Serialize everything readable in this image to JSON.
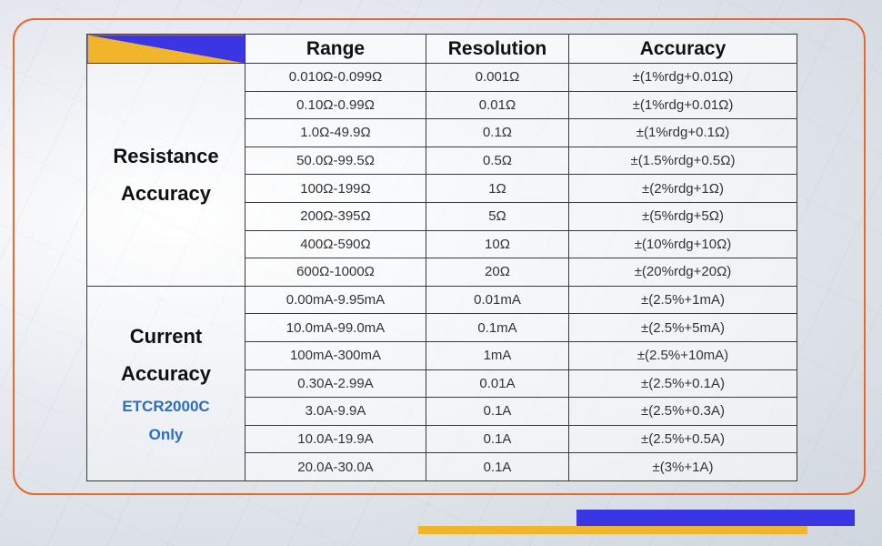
{
  "colors": {
    "frame_border": "#e8692a",
    "accent_blue": "#3a36e6",
    "accent_yellow": "#f1b52c",
    "note_blue": "#2c6fc0"
  },
  "table": {
    "headers": [
      "Range",
      "Resolution",
      "Accuracy"
    ],
    "resistance": {
      "title_line1": "Resistance",
      "title_line2": "Accuracy",
      "rows": [
        [
          "0.010Ω-0.099Ω",
          "0.001Ω",
          "±(1%rdg+0.01Ω)"
        ],
        [
          "0.10Ω-0.99Ω",
          "0.01Ω",
          "±(1%rdg+0.01Ω)"
        ],
        [
          "1.0Ω-49.9Ω",
          "0.1Ω",
          "±(1%rdg+0.1Ω)"
        ],
        [
          "50.0Ω-99.5Ω",
          "0.5Ω",
          "±(1.5%rdg+0.5Ω)"
        ],
        [
          "100Ω-199Ω",
          "1Ω",
          "±(2%rdg+1Ω)"
        ],
        [
          "200Ω-395Ω",
          "5Ω",
          "±(5%rdg+5Ω)"
        ],
        [
          "400Ω-590Ω",
          "10Ω",
          "±(10%rdg+10Ω)"
        ],
        [
          "600Ω-1000Ω",
          "20Ω",
          "±(20%rdg+20Ω)"
        ]
      ]
    },
    "current": {
      "title_line1": "Current",
      "title_line2": "Accuracy",
      "note_line1": "ETCR2000C",
      "note_line2": "Only",
      "rows": [
        [
          "0.00mA-9.95mA",
          "0.01mA",
          "±(2.5%+1mA)"
        ],
        [
          "10.0mA-99.0mA",
          "0.1mA",
          "±(2.5%+5mA)"
        ],
        [
          "100mA-300mA",
          "1mA",
          "±(2.5%+10mA)"
        ],
        [
          "0.30A-2.99A",
          "0.01A",
          "±(2.5%+0.1A)"
        ],
        [
          "3.0A-9.9A",
          "0.1A",
          "±(2.5%+0.3A)"
        ],
        [
          "10.0A-19.9A",
          "0.1A",
          "±(2.5%+0.5A)"
        ],
        [
          "20.0A-30.0A",
          "0.1A",
          "±(3%+1A)"
        ]
      ]
    }
  }
}
